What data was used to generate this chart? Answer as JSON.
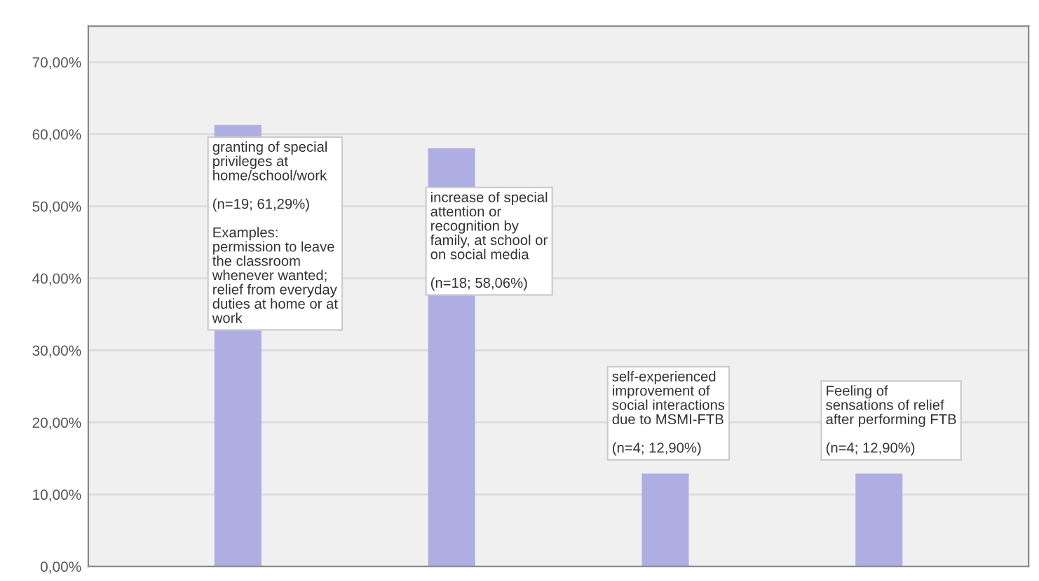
{
  "chart_data": {
    "type": "bar",
    "categories": [
      null,
      null,
      null,
      null
    ],
    "values": [
      61.29,
      58.06,
      12.9,
      12.9
    ],
    "color": "#aeaee3",
    "ylim": [
      0,
      75
    ],
    "yticks": [
      {
        "value": 0,
        "label": "0,00%"
      },
      {
        "value": 10,
        "label": "10,00%"
      },
      {
        "value": 20,
        "label": "20,00%"
      },
      {
        "value": 30,
        "label": "30,00%"
      },
      {
        "value": 40,
        "label": "40,00%"
      },
      {
        "value": 50,
        "label": "50,00%"
      },
      {
        "value": 60,
        "label": "60,00%"
      },
      {
        "value": 70,
        "label": "70,00%"
      }
    ],
    "grid": "y",
    "tick_labels": "y",
    "annotations": [
      "granting of special\nprivileges at\nhome/school/work\n\n(n=19; 61,29%)\n\nExamples:\npermission to leave\nthe classroom\nwhenever wanted;\nrelief from everyday\nduties at home or at\nwork",
      "increase of special\nattention or\nrecognition by\nfamily, at school or\non social media\n\n(n=18; 58,06%)",
      "self-experienced\nimprovement of\nsocial interactions\ndue to MSMI-FTB\n\n(n=4; 12,90%)",
      "Feeling of\nsensations of relief\nafter performing FTB\n\n(n=4; 12,90%)"
    ]
  }
}
